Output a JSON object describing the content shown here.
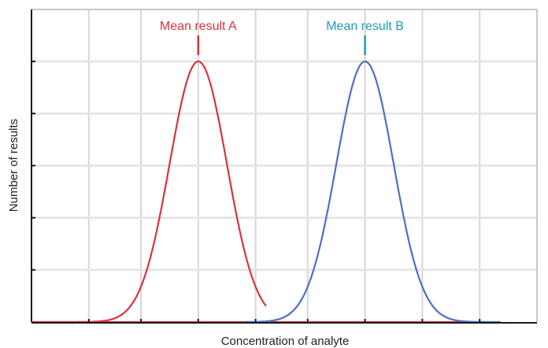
{
  "chart_data": {
    "type": "line",
    "xlabel": "Concentration of analyte",
    "ylabel": "Number of results",
    "grid": true,
    "x_tick_labels": [],
    "y_tick_labels": [],
    "xlim": [
      0,
      9.7
    ],
    "ylim": [
      0,
      1.0
    ],
    "series": [
      {
        "color": "#d9333f",
        "distribution": "normal",
        "mean": 3.2,
        "sd": 0.55,
        "peak": 1.0,
        "x_range": [
          0,
          4.5
        ]
      },
      {
        "color": "#4f6fc4",
        "distribution": "normal",
        "mean": 6.4,
        "sd": 0.55,
        "peak": 1.0,
        "x_range": [
          4.1,
          9.0
        ]
      }
    ],
    "annotations": [
      {
        "text": "Mean result  A",
        "x": 3.2,
        "color": "#d9333f"
      },
      {
        "text": "Mean result B",
        "x": 6.4,
        "color": "#1f9bb4"
      }
    ],
    "red_baseline": [
      0,
      9.0
    ]
  }
}
